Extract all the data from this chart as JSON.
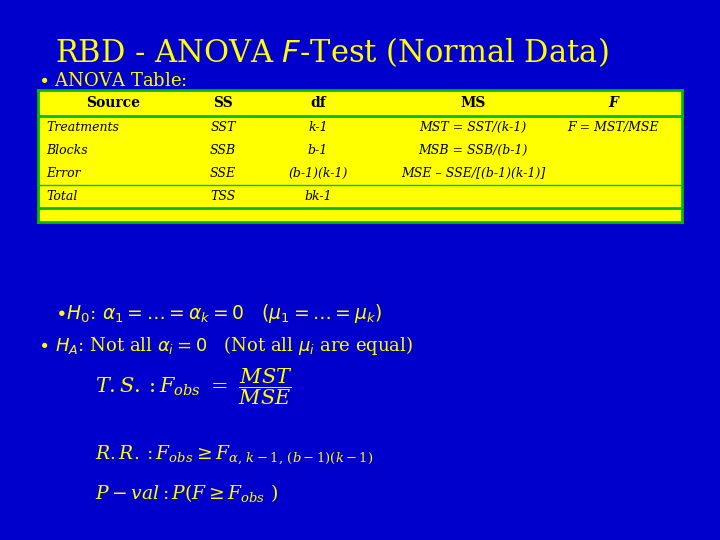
{
  "bg_color": "#0000cc",
  "yellow": "#ffff00",
  "green_border": "#00bb00",
  "title_fontsize": 22,
  "table_header": [
    "Source",
    "SS",
    "df",
    "MS",
    "F"
  ],
  "table_rows": [
    [
      "Treatments",
      "SST",
      "k-1",
      "MST = SST/(k-1)",
      "F = MST/MSE"
    ],
    [
      "Blocks",
      "SSB",
      "b-1",
      "MSB = SSB/(b-1)",
      ""
    ],
    [
      "Error",
      "SSE",
      "(b-1)(k-1)",
      "MSE – SSE/[(b-1)(k-1)]",
      ""
    ],
    [
      "Total",
      "TSS",
      "bk-1",
      "",
      ""
    ]
  ]
}
